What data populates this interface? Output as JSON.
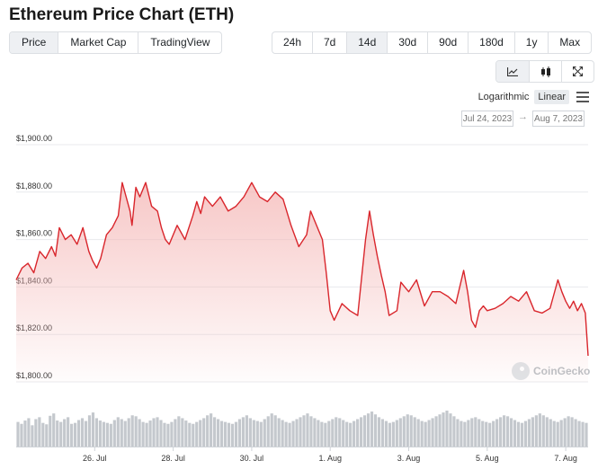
{
  "page": {
    "title": "Ethereum Price Chart (ETH)"
  },
  "chart_tabs": [
    {
      "label": "Price",
      "active": true
    },
    {
      "label": "Market Cap",
      "active": false
    },
    {
      "label": "TradingView",
      "active": false
    }
  ],
  "range_tabs": [
    {
      "label": "24h",
      "active": false
    },
    {
      "label": "7d",
      "active": false
    },
    {
      "label": "14d",
      "active": true
    },
    {
      "label": "30d",
      "active": false
    },
    {
      "label": "90d",
      "active": false
    },
    {
      "label": "180d",
      "active": false
    },
    {
      "label": "1y",
      "active": false
    },
    {
      "label": "Max",
      "active": false
    }
  ],
  "view_tabs": [
    {
      "icon": "line-chart-icon",
      "active": true
    },
    {
      "icon": "candlestick-icon",
      "active": false
    },
    {
      "icon": "fullscreen-icon",
      "active": false
    }
  ],
  "scale": {
    "options": [
      "Logarithmic",
      "Linear"
    ],
    "active": "Linear",
    "menu_icon": "hamburger-menu-icon"
  },
  "date_range": {
    "from_placeholder": "Jul 24, 2023",
    "to_placeholder": "Aug 7, 2023",
    "separator": "→"
  },
  "watermark": "CoinGecko",
  "colors": {
    "line": "#d9262c",
    "area_top": "#f4b5b4",
    "volume": "#c4c8cd",
    "active_tab_bg": "#eef0f3"
  },
  "chart_data": {
    "type": "area",
    "title": "",
    "xlabel": "",
    "ylabel": "",
    "ylim": [
      1800,
      1900
    ],
    "y_ticks": [
      "$1,800.00",
      "$1,820.00",
      "$1,840.00",
      "$1,860.00",
      "$1,880.00",
      "$1,900.00"
    ],
    "x_ticks": [
      "26. Jul",
      "28. Jul",
      "30. Jul",
      "1. Aug",
      "3. Aug",
      "5. Aug",
      "7. Aug"
    ],
    "x_tick_days": [
      2,
      4,
      6,
      8,
      10,
      12,
      14
    ],
    "x_range_days": [
      0,
      14.57
    ],
    "series": [
      {
        "x": [
          0,
          0.15,
          0.3,
          0.45,
          0.6,
          0.75,
          0.9,
          1.0,
          1.1,
          1.25,
          1.4,
          1.55,
          1.7,
          1.85,
          1.95,
          2.05,
          2.15,
          2.3,
          2.45,
          2.6,
          2.7,
          2.9,
          2.95,
          3.05,
          3.15,
          3.3,
          3.45,
          3.6,
          3.7,
          3.8,
          3.9,
          4.1,
          4.3,
          4.5,
          4.6,
          4.7,
          4.8,
          4.9,
          5.0,
          5.2,
          5.4,
          5.6,
          5.8,
          6.0,
          6.2,
          6.4,
          6.6,
          6.8,
          7.0,
          7.2,
          7.4,
          7.5,
          7.6,
          7.8,
          7.9,
          8.0,
          8.1,
          8.3,
          8.5,
          8.7,
          8.9,
          9.0,
          9.1,
          9.2,
          9.3,
          9.4,
          9.5,
          9.7,
          9.8,
          9.9,
          10.0,
          10.2,
          10.4,
          10.6,
          10.8,
          11.0,
          11.2,
          11.4,
          11.5,
          11.6,
          11.7,
          11.8,
          11.9,
          12.0,
          12.2,
          12.4,
          12.6,
          12.8,
          13.0,
          13.2,
          13.4,
          13.6,
          13.8,
          13.9,
          14.0,
          14.1,
          14.2,
          14.3,
          14.4,
          14.5,
          14.57
        ],
        "y": [
          1843,
          1848,
          1850,
          1846,
          1855,
          1852,
          1857,
          1853,
          1865,
          1860,
          1862,
          1858,
          1865,
          1855,
          1851,
          1848,
          1852,
          1862,
          1865,
          1870,
          1884,
          1872,
          1866,
          1882,
          1878,
          1884,
          1874,
          1872,
          1865,
          1860,
          1858,
          1866,
          1860,
          1870,
          1876,
          1871,
          1878,
          1876,
          1874,
          1878,
          1872,
          1874,
          1878,
          1884,
          1878,
          1876,
          1880,
          1877,
          1866,
          1857,
          1862,
          1872,
          1868,
          1860,
          1846,
          1830,
          1826,
          1833,
          1830,
          1828,
          1860,
          1872,
          1862,
          1853,
          1845,
          1838,
          1828,
          1830,
          1842,
          1840,
          1838,
          1843,
          1832,
          1838,
          1838,
          1836,
          1833,
          1847,
          1838,
          1826,
          1823,
          1830,
          1832,
          1830,
          1831,
          1833,
          1836,
          1834,
          1838,
          1830,
          1829,
          1831,
          1843,
          1838,
          1834,
          1831,
          1834,
          1830,
          1833,
          1829,
          1811
        ]
      }
    ],
    "volume": [
      52,
      48,
      55,
      60,
      45,
      58,
      62,
      50,
      47,
      65,
      70,
      55,
      52,
      58,
      62,
      48,
      50,
      56,
      60,
      54,
      66,
      72,
      60,
      55,
      52,
      50,
      48,
      56,
      62,
      58,
      54,
      60,
      66,
      64,
      58,
      52,
      50,
      55,
      60,
      62,
      56,
      50,
      48,
      52,
      58,
      64,
      60,
      55,
      50,
      48,
      52,
      56,
      60,
      66,
      70,
      62,
      58,
      54,
      52,
      50,
      48,
      52,
      58,
      62,
      66,
      60,
      56,
      54,
      52,
      58,
      64,
      70,
      66,
      60,
      56,
      52,
      50,
      54,
      58,
      62,
      66,
      70,
      64,
      60,
      56,
      52,
      50,
      54,
      58,
      62,
      60,
      56,
      52,
      50,
      54,
      58,
      62,
      66,
      70,
      74,
      68,
      62,
      58,
      54,
      50,
      52,
      56,
      60,
      64,
      68,
      66,
      62,
      58,
      54,
      52,
      56,
      60,
      64,
      68,
      72,
      76,
      70,
      64,
      58,
      54,
      52,
      56,
      60,
      62,
      58,
      54,
      52,
      50,
      54,
      58,
      62,
      66,
      64,
      60,
      56,
      52,
      50,
      54,
      58,
      62,
      66,
      70,
      66,
      62,
      58,
      54,
      52,
      56,
      60,
      64,
      62,
      58,
      54,
      52,
      50
    ]
  }
}
